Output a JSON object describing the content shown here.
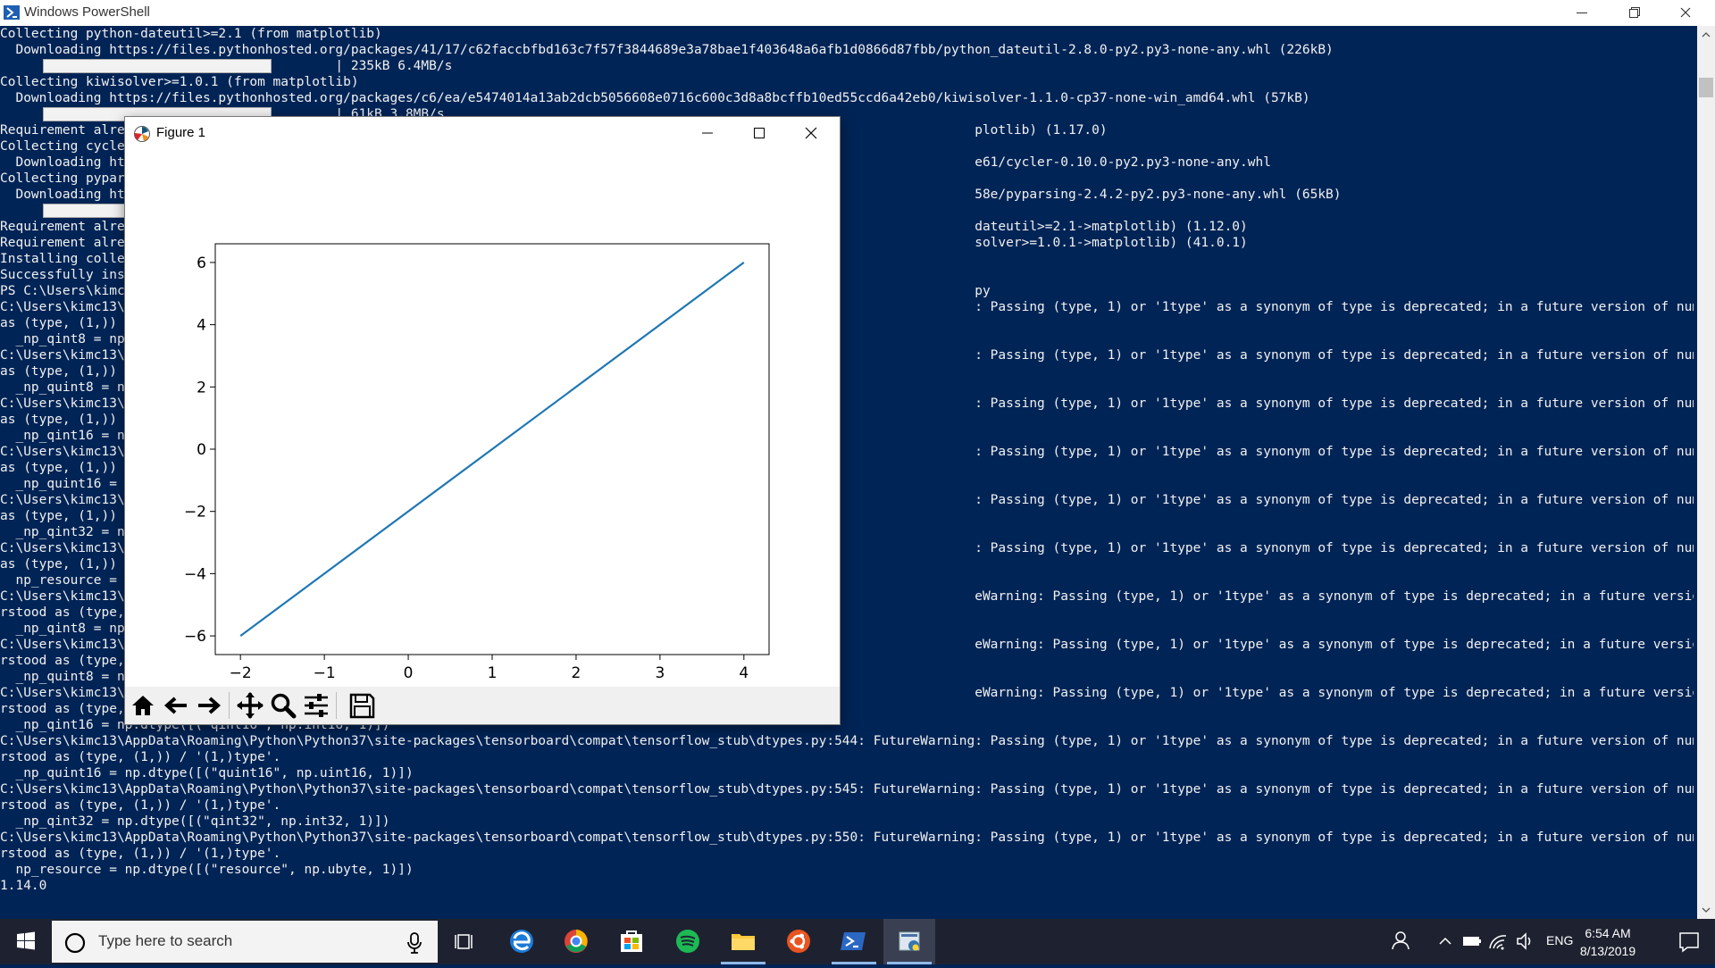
{
  "powershell": {
    "title": "Windows PowerShell",
    "lines": [
      "Collecting python-dateutil>=2.1 (from matplotlib)",
      "  Downloading https://files.pythonhosted.org/packages/41/17/c62faccbfbd163c7f57f3844689e3a78bae1f403648a6afb1d0866d87fbb/python_dateutil-2.8.0-py2.py3-none-any.whl (226kB)",
      "                                           | 235kB 6.4MB/s",
      "Collecting kiwisolver>=1.0.1 (from matplotlib)",
      "  Downloading https://files.pythonhosted.org/packages/c6/ea/e5474014a13ab2dcb5056608e0716c600c3d8a8bcffb10ed55ccd6a42eb0/kiwisolver-1.1.0-cp37-none-win_amd64.whl (57kB)",
      "                                           | 61kB 3.8MB/s",
      "Requirement alrea                                                                                                            plotlib) (1.17.0)",
      "Collecting cycler",
      "  Downloading htt                                                                                                            e61/cycler-0.10.0-py2.py3-none-any.whl",
      "Collecting pypars",
      "  Downloading htt                                                                                                            58e/pyparsing-2.4.2-py2.py3-none-any.whl (65kB)",
      "",
      "Requirement alrea                                                                                                            dateutil>=2.1->matplotlib) (1.12.0)",
      "Requirement alrea                                                                                                            solver>=1.0.1->matplotlib) (41.0.1)",
      "Installing collec",
      "Successfully inst",
      "PS C:\\Users\\kimc1                                                                                                            py",
      "C:\\Users\\kimc13\\Ap                                                                                                           : Passing (type, 1) or '1type' as a synonym of type is deprecated; in a future version of numpy, it will be understood",
      "as (type, (1,)) /",
      "  _np_qint8 = np.",
      "C:\\Users\\kimc13\\Ap                                                                                                           : Passing (type, 1) or '1type' as a synonym of type is deprecated; in a future version of numpy, it will be understood",
      "as (type, (1,)) /",
      "  _np_quint8 = np",
      "C:\\Users\\kimc13\\Ap                                                                                                           : Passing (type, 1) or '1type' as a synonym of type is deprecated; in a future version of numpy, it will be understood",
      "as (type, (1,)) /",
      "  _np_qint16 = np",
      "C:\\Users\\kimc13\\Ap                                                                                                           : Passing (type, 1) or '1type' as a synonym of type is deprecated; in a future version of numpy, it will be understood",
      "as (type, (1,)) /",
      "  _np_quint16 = n",
      "C:\\Users\\kimc13\\Ap                                                                                                           : Passing (type, 1) or '1type' as a synonym of type is deprecated; in a future version of numpy, it will be understood",
      "as (type, (1,)) /",
      "  _np_qint32 = np",
      "C:\\Users\\kimc13\\Ap                                                                                                           : Passing (type, 1) or '1type' as a synonym of type is deprecated; in a future version of numpy, it will be understood",
      "as (type, (1,)) /",
      "  np_resource = n",
      "C:\\Users\\kimc13\\Ap                                                                                                           eWarning: Passing (type, 1) or '1type' as a synonym of type is deprecated; in a future version of numpy, it will be unde",
      "rstood as (type, ",
      "  _np_qint8 = np.",
      "C:\\Users\\kimc13\\Ap                                                                                                           eWarning: Passing (type, 1) or '1type' as a synonym of type is deprecated; in a future version of numpy, it will be unde",
      "rstood as (type, ",
      "  _np_quint8 = np",
      "C:\\Users\\kimc13\\Ap                                                                                                           eWarning: Passing (type, 1) or '1type' as a synonym of type is deprecated; in a future version of numpy, it will be unde",
      "rstood as (type, ",
      "  _np_qint16 = np.dtype([(\"qint16\", np.int16, 1)])",
      "C:\\Users\\kimc13\\AppData\\Roaming\\Python\\Python37\\site-packages\\tensorboard\\compat\\tensorflow_stub\\dtypes.py:544: FutureWarning: Passing (type, 1) or '1type' as a synonym of type is deprecated; in a future version of numpy, it will be unde",
      "rstood as (type, (1,)) / '(1,)type'.",
      "  _np_quint16 = np.dtype([(\"quint16\", np.uint16, 1)])",
      "C:\\Users\\kimc13\\AppData\\Roaming\\Python\\Python37\\site-packages\\tensorboard\\compat\\tensorflow_stub\\dtypes.py:545: FutureWarning: Passing (type, 1) or '1type' as a synonym of type is deprecated; in a future version of numpy, it will be unde",
      "rstood as (type, (1,)) / '(1,)type'.",
      "  _np_qint32 = np.dtype([(\"qint32\", np.int32, 1)])",
      "C:\\Users\\kimc13\\AppData\\Roaming\\Python\\Python37\\site-packages\\tensorboard\\compat\\tensorflow_stub\\dtypes.py:550: FutureWarning: Passing (type, 1) or '1type' as a synonym of type is deprecated; in a future version of numpy, it will be unde",
      "rstood as (type, (1,)) / '(1,)type'.",
      "  np_resource = np.dtype([(\"resource\", np.ubyte, 1)])",
      "1.14.0"
    ]
  },
  "figure": {
    "title": "Figure 1",
    "toolbar": [
      "home-icon",
      "back-arrow-icon",
      "forward-arrow-icon",
      "pan-icon",
      "zoom-icon",
      "configure-subplots-icon",
      "save-icon"
    ]
  },
  "chart_data": {
    "type": "line",
    "x": [
      -2,
      4
    ],
    "y": [
      -6,
      6
    ],
    "xlim": [
      -2.3,
      4.3
    ],
    "ylim": [
      -6.6,
      6.6
    ],
    "xticks": [
      -2,
      -1,
      0,
      1,
      2,
      3,
      4
    ],
    "yticks": [
      -6,
      -4,
      -2,
      0,
      2,
      4,
      6
    ],
    "xtick_labels": [
      "−2",
      "−1",
      "0",
      "1",
      "2",
      "3",
      "4"
    ],
    "ytick_labels": [
      "−6",
      "−4",
      "−2",
      "0",
      "2",
      "4",
      "6"
    ],
    "line_color": "#1f77b4",
    "title": "",
    "xlabel": "",
    "ylabel": "",
    "grid": false
  },
  "taskbar": {
    "search_placeholder": "Type here to search",
    "time": "6:54 AM",
    "date": "8/13/2019",
    "language": "ENG"
  }
}
